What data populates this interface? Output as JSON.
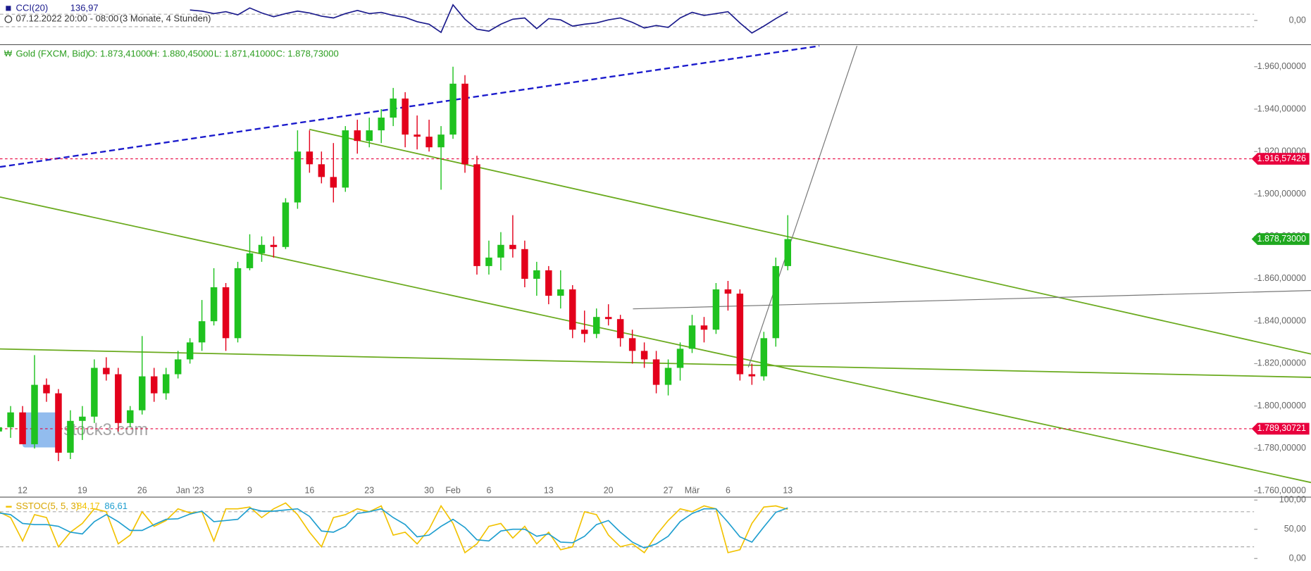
{
  "header": {
    "period": "07.12.2022 20:00 - 08:00",
    "range": "(3 Monate, 4 Stunden)"
  },
  "chart_data": [
    {
      "type": "line",
      "title": "CCI(20)",
      "value_label": "136,97",
      "color": "#1a1a8c",
      "values": [
        null,
        null,
        null,
        null,
        null,
        null,
        null,
        null,
        null,
        null,
        null,
        null,
        null,
        null,
        null,
        null,
        167,
        150,
        110,
        140,
        90,
        200,
        120,
        60,
        110,
        150,
        120,
        70,
        40,
        110,
        160,
        110,
        130,
        80,
        50,
        -20,
        -60,
        -190,
        250,
        20,
        -140,
        -170,
        -60,
        20,
        40,
        -130,
        30,
        10,
        -90,
        -60,
        -40,
        10,
        40,
        -30,
        -120,
        -80,
        -110,
        40,
        130,
        80,
        110,
        140,
        -40,
        -200,
        -90,
        30,
        136.97
      ],
      "ylim": [
        -380,
        327
      ],
      "yticks": [
        {
          "value": 0,
          "label": "0,00"
        }
      ],
      "levels": [
        100,
        -100
      ]
    },
    {
      "type": "candlestick",
      "title": "Gold (FXCM, Bid)",
      "quote": [
        "O: 1.873,41000",
        "H: 1.880,45000",
        "L: 1.871,41000",
        "C: 1.878,73000"
      ],
      "up_color": "#1fc21f",
      "down_color": "#e3001b",
      "categories": [
        null,
        null,
        "12",
        null,
        null,
        null,
        null,
        "19",
        null,
        null,
        null,
        null,
        "26",
        null,
        null,
        null,
        "Jan '23",
        null,
        null,
        null,
        null,
        "9",
        null,
        null,
        null,
        null,
        "16",
        null,
        null,
        null,
        null,
        "23",
        null,
        null,
        null,
        null,
        "30",
        null,
        "Feb",
        null,
        null,
        "6",
        null,
        null,
        null,
        null,
        "13",
        null,
        null,
        null,
        null,
        "20",
        null,
        null,
        null,
        null,
        "27",
        null,
        "Mär",
        null,
        null,
        "6",
        null,
        null,
        null,
        null,
        "13"
      ],
      "open": [
        1788,
        1790,
        1797,
        1782,
        1810,
        1806,
        1778,
        1793,
        1795,
        1818,
        1815,
        1792,
        1798,
        1814,
        1806,
        1815,
        1822,
        1830,
        1840,
        1856,
        1832,
        1865,
        1872,
        1876,
        1875,
        1896,
        1920,
        1914,
        1908,
        1903,
        1930,
        1925,
        1930,
        1936,
        1945,
        1928,
        1927,
        1922,
        1928,
        1952,
        1914,
        1866,
        1870,
        1876,
        1874,
        1860,
        1864,
        1852,
        1855,
        1836,
        1834,
        1842,
        1841,
        1832,
        1826,
        1822,
        1810,
        1818,
        1827,
        1838,
        1836,
        1855,
        1853,
        1815,
        1814,
        1832,
        1866
      ],
      "high": [
        1795,
        1800,
        1800,
        1824,
        1813,
        1808,
        1798,
        1800,
        1822,
        1823,
        1818,
        1800,
        1833,
        1818,
        1818,
        1826,
        1832,
        1850,
        1865,
        1858,
        1868,
        1881,
        1880,
        1880,
        1898,
        1930,
        1930,
        1920,
        1924,
        1932,
        1935,
        1936,
        1940,
        1950,
        1948,
        1937,
        1935,
        1932,
        1960,
        1956,
        1918,
        1878,
        1882,
        1890,
        1878,
        1868,
        1866,
        1864,
        1857,
        1845,
        1846,
        1848,
        1843,
        1836,
        1830,
        1826,
        1822,
        1830,
        1843,
        1842,
        1858,
        1859,
        1855,
        1820,
        1835,
        1870,
        1890
      ],
      "low": [
        1782,
        1785,
        1782,
        1780,
        1802,
        1774,
        1775,
        1784,
        1792,
        1812,
        1788,
        1790,
        1796,
        1802,
        1803,
        1813,
        1820,
        1826,
        1838,
        1826,
        1830,
        1864,
        1868,
        1870,
        1874,
        1893,
        1910,
        1905,
        1896,
        1901,
        1919,
        1922,
        1924,
        1932,
        1922,
        1921,
        1920,
        1902,
        1926,
        1910,
        1862,
        1862,
        1864,
        1870,
        1856,
        1852,
        1848,
        1846,
        1832,
        1830,
        1832,
        1838,
        1828,
        1820,
        1818,
        1806,
        1805,
        1812,
        1825,
        1830,
        1834,
        1845,
        1812,
        1810,
        1812,
        1828,
        1864
      ],
      "close": [
        1790,
        1797,
        1782,
        1810,
        1806,
        1778,
        1793,
        1795,
        1818,
        1815,
        1792,
        1798,
        1814,
        1806,
        1815,
        1822,
        1830,
        1840,
        1856,
        1832,
        1865,
        1872,
        1876,
        1875,
        1896,
        1920,
        1914,
        1908,
        1903,
        1930,
        1925,
        1930,
        1936,
        1945,
        1928,
        1927,
        1922,
        1928,
        1952,
        1914,
        1866,
        1870,
        1876,
        1874,
        1860,
        1864,
        1852,
        1855,
        1836,
        1834,
        1842,
        1841,
        1832,
        1826,
        1822,
        1810,
        1818,
        1827,
        1838,
        1836,
        1855,
        1853,
        1815,
        1814,
        1832,
        1866,
        1878.73
      ],
      "ylim": [
        1757.25,
        1970.2
      ],
      "yticks": [
        {
          "value": 1960,
          "label": "1.960,00000"
        },
        {
          "value": 1940,
          "label": "1.940,00000"
        },
        {
          "value": 1920,
          "label": "1.920,00000"
        },
        {
          "value": 1900,
          "label": "1.900,00000"
        },
        {
          "value": 1880,
          "label": "1.880,00000"
        },
        {
          "value": 1860,
          "label": "1.860,00000"
        },
        {
          "value": 1840,
          "label": "1.840,00000"
        },
        {
          "value": 1820,
          "label": "1.820,00000"
        },
        {
          "value": 1800,
          "label": "1.800,00000"
        },
        {
          "value": 1780,
          "label": "1.780,00000"
        },
        {
          "value": 1760,
          "label": "1.760,00000"
        }
      ],
      "levels": [
        {
          "value": 1916.57426,
          "label": "1.916,57426",
          "color": "#e8003d"
        },
        {
          "value": 1789.30721,
          "label": "1.789,30721",
          "color": "#e8003d"
        }
      ],
      "last_price": {
        "value": 1878.73,
        "label": "1.878,73000",
        "color": "#1fa81f"
      },
      "watermark": "stock3.com"
    },
    {
      "type": "line",
      "title": "SSTOC(5, 5, 3)",
      "title_color": "#d8a600",
      "series": [
        {
          "value_label": "84,17",
          "color": "#f2c200",
          "values": [
            80,
            70,
            30,
            75,
            70,
            20,
            45,
            60,
            85,
            80,
            25,
            40,
            80,
            55,
            65,
            85,
            78,
            80,
            30,
            85,
            85,
            88,
            70,
            85,
            95,
            75,
            45,
            20,
            70,
            75,
            85,
            80,
            90,
            40,
            45,
            25,
            50,
            90,
            60,
            10,
            25,
            55,
            60,
            35,
            55,
            25,
            45,
            15,
            20,
            80,
            75,
            40,
            20,
            25,
            10,
            40,
            65,
            85,
            80,
            90,
            85,
            10,
            15,
            60,
            88,
            90,
            84.17
          ]
        },
        {
          "value_label": "86,61",
          "color": "#1e9ecf",
          "values": [
            78,
            75,
            60,
            58,
            58,
            55,
            45,
            42,
            63,
            75,
            63,
            48,
            48,
            58,
            67,
            68,
            76,
            81,
            63,
            65,
            67,
            86,
            81,
            81,
            83,
            85,
            72,
            47,
            45,
            55,
            77,
            80,
            85,
            70,
            58,
            37,
            40,
            55,
            67,
            53,
            32,
            30,
            47,
            50,
            50,
            38,
            42,
            28,
            27,
            38,
            58,
            65,
            45,
            28,
            18,
            25,
            38,
            63,
            77,
            85,
            85,
            62,
            37,
            28,
            54,
            79,
            86.61
          ]
        }
      ],
      "ylim": [
        -21.4,
        104.3
      ],
      "yticks": [
        {
          "value": 100,
          "label": "100,00"
        },
        {
          "value": 50,
          "label": "50,00"
        },
        {
          "value": 0,
          "label": "0,00"
        }
      ],
      "levels": [
        80,
        20
      ]
    }
  ]
}
